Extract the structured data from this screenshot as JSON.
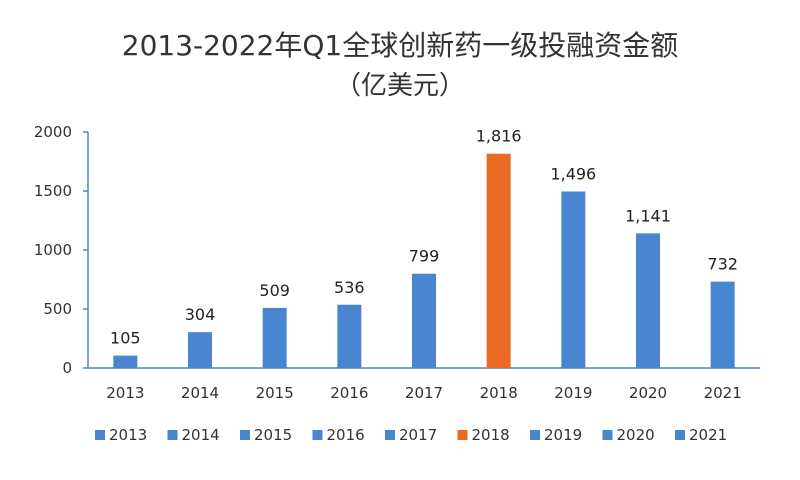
{
  "chart_data": {
    "type": "bar",
    "title": "2013-2022年Q1全球创新药一级投融资金额",
    "subtitle": "（亿美元）",
    "categories": [
      "2013",
      "2014",
      "2015",
      "2016",
      "2017",
      "2018",
      "2019",
      "2020",
      "2021"
    ],
    "values": [
      105,
      304,
      509,
      536,
      799,
      1816,
      1496,
      1141,
      732
    ],
    "value_labels": [
      "105",
      "304",
      "509",
      "536",
      "799",
      "1,816",
      "1,496",
      "1,141",
      "732"
    ],
    "highlight_category": "2018",
    "ylim": [
      0,
      2000
    ],
    "yticks": [
      0,
      500,
      1000,
      1500,
      2000
    ],
    "ytick_labels": [
      "0",
      "500",
      "1000",
      "1500",
      "2000"
    ],
    "xlabel": "",
    "ylabel": "",
    "grid": false,
    "legend_position": "bottom",
    "legend": [
      "2013",
      "2014",
      "2015",
      "2016",
      "2017",
      "2018",
      "2019",
      "2020",
      "2021"
    ],
    "colors": {
      "default": "#4A86D0",
      "highlight": "#EA6B23",
      "axis": "#4A86D0"
    }
  }
}
